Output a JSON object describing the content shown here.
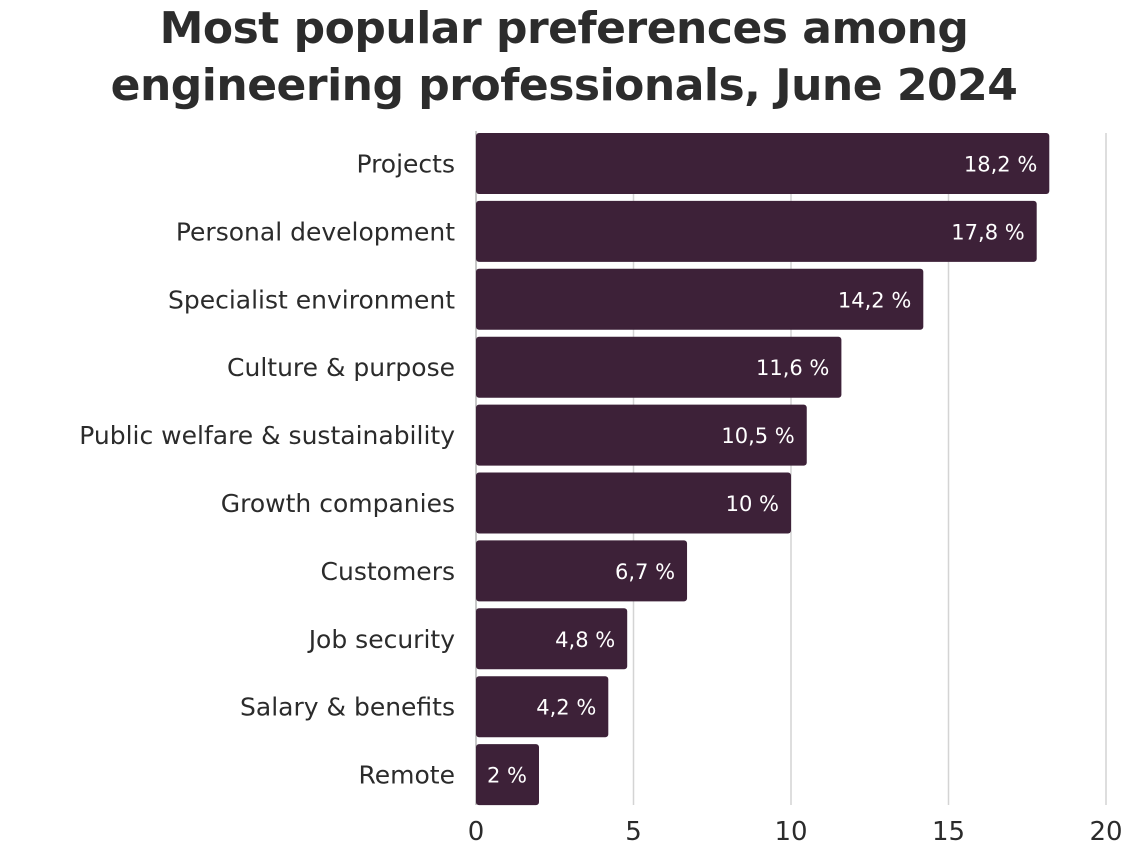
{
  "title": {
    "line1": "Most popular preferences among",
    "line2": "engineering professionals, June 2024"
  },
  "chart_data": {
    "type": "bar",
    "orientation": "horizontal",
    "categories": [
      "Projects",
      "Personal development",
      "Specialist environment",
      "Culture & purpose",
      "Public welfare & sustainability",
      "Growth companies",
      "Customers",
      "Job security",
      "Salary & benefits",
      "Remote"
    ],
    "values": [
      18.2,
      17.8,
      14.2,
      11.6,
      10.5,
      10,
      6.7,
      4.8,
      4.2,
      2
    ],
    "value_labels": [
      "18,2 %",
      "17,8 %",
      "14,2 %",
      "11,6 %",
      "10,5 %",
      "10 %",
      "6,7 %",
      "4,8 %",
      "4,2 %",
      "2 %"
    ],
    "xticks": [
      0,
      5,
      10,
      15,
      20
    ],
    "xlim": [
      0,
      20
    ],
    "grid": true,
    "bar_color": "#3d2138",
    "grid_color": "#d4d4d4"
  }
}
